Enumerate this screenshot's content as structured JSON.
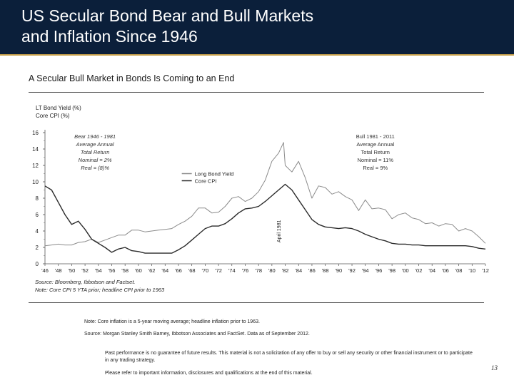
{
  "header": {
    "title": "US Secular Bond Bear and Bull Markets\nand Inflation Since 1946"
  },
  "subtitle": "A Secular Bull Market in Bonds Is Coming to an End",
  "chart_data": {
    "type": "line",
    "y_axis_labels": [
      "LT Bond Yield (%)",
      "Core CPI (%)"
    ],
    "ylim": [
      0,
      16
    ],
    "y_ticks": [
      "0",
      "2",
      "4",
      "6",
      "8",
      "10",
      "12",
      "14",
      "16"
    ],
    "xlim": [
      1946,
      2012
    ],
    "x_tick_labels": [
      "'46",
      "'48",
      "'50",
      "'52",
      "'54",
      "'56",
      "'58",
      "'60",
      "'62",
      "'64",
      "'66",
      "'68",
      "'70",
      "'72",
      "'74",
      "'76",
      "'78",
      "'80",
      "'82",
      "'84",
      "'86",
      "'88",
      "'90",
      "'92",
      "'94",
      "'96",
      "'98",
      "'00",
      "'02",
      "'04",
      "'06",
      "'08",
      "'10",
      "'12"
    ],
    "series": [
      {
        "name": "Long Bond Yield",
        "color": "#8c8c8c",
        "x": [
          1946,
          1947,
          1948,
          1949,
          1950,
          1951,
          1952,
          1953,
          1954,
          1955,
          1956,
          1957,
          1958,
          1959,
          1960,
          1961,
          1962,
          1963,
          1964,
          1965,
          1966,
          1967,
          1968,
          1969,
          1970,
          1971,
          1972,
          1973,
          1974,
          1975,
          1976,
          1977,
          1978,
          1979,
          1980,
          1981,
          1981.75,
          1982,
          1983,
          1984,
          1985,
          1986,
          1987,
          1988,
          1989,
          1990,
          1991,
          1992,
          1993,
          1994,
          1995,
          1996,
          1997,
          1998,
          1999,
          2000,
          2001,
          2002,
          2003,
          2004,
          2005,
          2006,
          2007,
          2008,
          2009,
          2010,
          2011,
          2012
        ],
        "y": [
          2.2,
          2.3,
          2.4,
          2.3,
          2.3,
          2.6,
          2.7,
          3.0,
          2.6,
          2.9,
          3.2,
          3.5,
          3.5,
          4.1,
          4.1,
          3.9,
          4.0,
          4.1,
          4.2,
          4.3,
          4.8,
          5.2,
          5.8,
          6.8,
          6.8,
          6.2,
          6.3,
          7.0,
          8.0,
          8.2,
          7.6,
          8.0,
          8.8,
          10.2,
          12.5,
          13.5,
          14.8,
          12.0,
          11.2,
          12.5,
          10.5,
          8.0,
          9.5,
          9.3,
          8.5,
          8.8,
          8.2,
          7.8,
          6.5,
          7.8,
          6.7,
          6.8,
          6.6,
          5.5,
          6.0,
          6.2,
          5.6,
          5.4,
          4.9,
          5.0,
          4.6,
          4.9,
          4.8,
          4.0,
          4.3,
          4.0,
          3.3,
          2.5
        ]
      },
      {
        "name": "Core CPI",
        "color": "#2b2b2b",
        "x": [
          1946,
          1947,
          1948,
          1949,
          1950,
          1951,
          1952,
          1953,
          1954,
          1955,
          1956,
          1957,
          1958,
          1959,
          1960,
          1961,
          1962,
          1963,
          1964,
          1965,
          1966,
          1967,
          1968,
          1969,
          1970,
          1971,
          1972,
          1973,
          1974,
          1975,
          1976,
          1977,
          1978,
          1979,
          1980,
          1981,
          1982,
          1983,
          1984,
          1985,
          1986,
          1987,
          1988,
          1989,
          1990,
          1991,
          1992,
          1993,
          1994,
          1995,
          1996,
          1997,
          1998,
          1999,
          2000,
          2001,
          2002,
          2003,
          2004,
          2005,
          2006,
          2007,
          2008,
          2009,
          2010,
          2011,
          2012
        ],
        "y": [
          9.5,
          9.0,
          7.5,
          6.0,
          4.8,
          5.2,
          4.2,
          3.0,
          2.5,
          2.0,
          1.4,
          1.8,
          2.0,
          1.6,
          1.5,
          1.3,
          1.3,
          1.3,
          1.3,
          1.3,
          1.7,
          2.2,
          2.9,
          3.6,
          4.3,
          4.6,
          4.6,
          4.9,
          5.5,
          6.2,
          6.7,
          6.8,
          7.0,
          7.6,
          8.3,
          9.0,
          9.7,
          9.0,
          7.8,
          6.6,
          5.4,
          4.8,
          4.5,
          4.4,
          4.3,
          4.4,
          4.3,
          4.0,
          3.6,
          3.3,
          3.0,
          2.8,
          2.5,
          2.4,
          2.4,
          2.3,
          2.3,
          2.2,
          2.2,
          2.2,
          2.2,
          2.2,
          2.2,
          2.2,
          2.1,
          1.9,
          1.8
        ]
      }
    ],
    "annotations": {
      "bear_period": [
        "Bear 1946 - 1981",
        "Average Annual",
        "Total Return",
        "Nominal = 2%",
        "Real = (8)%"
      ],
      "bull_period": [
        "Bull 1981 - 2011",
        "Average Annual",
        "Total Return",
        "Nominal = 11%",
        "Real = 9%"
      ],
      "divider_label": "April 1981",
      "divider_x": 1981.3
    },
    "legend": [
      "Long Bond Yield",
      "Core CPI"
    ],
    "source_lines": [
      "Source: Bloomberg, Ibbotson and Factset.",
      "Note: Core CPI 5 YTA prior; headline CPI prior to 1963"
    ]
  },
  "notes": {
    "note": "Note: Core inflation is a 5-year moving average; headline inflation prior to 1963.",
    "source": "Source: Morgan Stanley Smith Barney, Ibbotson Associates and FactSet. Data as of September 2012."
  },
  "disclaimer": "Past performance is no guarantee of future results. This material is not a solicitation of any offer to buy or sell any security or other financial instrument or to participate in any trading strategy.",
  "refer": "Please refer to important information, disclosures and qualifications at the end of this material.",
  "page_number": "13"
}
